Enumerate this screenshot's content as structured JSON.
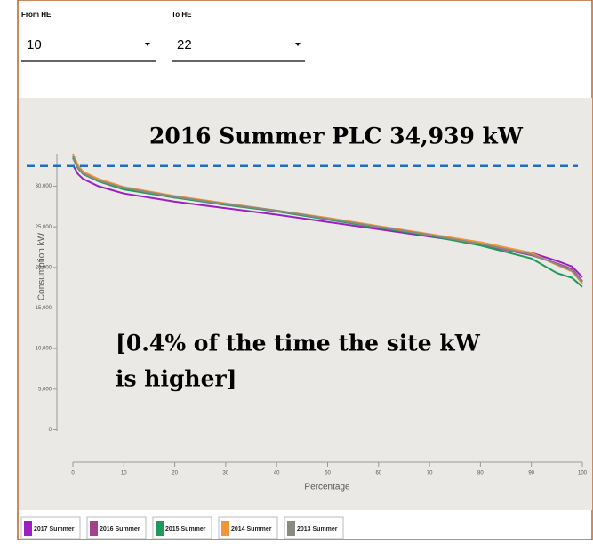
{
  "controls": {
    "from_label": "From HE",
    "from_value": "10",
    "to_label": "To HE",
    "to_value": "22"
  },
  "chart_data": {
    "type": "line",
    "ylabel": "Consumption kW",
    "xlabel": "Percentage",
    "annotations": [
      "2016 Summer PLC 34,939 kW",
      "[0.4% of the time the site kW",
      "is higher]"
    ],
    "reference_line": {
      "value": 32500,
      "color": "#1f6fc4"
    },
    "x": [
      0,
      1,
      2,
      5,
      10,
      20,
      30,
      40,
      50,
      60,
      70,
      80,
      90,
      95,
      98,
      100
    ],
    "series": [
      {
        "name": "2017 Summer",
        "color": "#9b1fc4",
        "values": [
          32600,
          31500,
          30900,
          30000,
          29100,
          28100,
          27300,
          26500,
          25600,
          24700,
          23800,
          22900,
          21800,
          20800,
          20100,
          18800
        ]
      },
      {
        "name": "2016 Summer",
        "color": "#a3418e",
        "values": [
          33800,
          32400,
          31700,
          30700,
          29700,
          28600,
          27800,
          26900,
          26000,
          25000,
          23900,
          22800,
          21500,
          20500,
          19800,
          18300
        ]
      },
      {
        "name": "2015 Summer",
        "color": "#1e9a5a",
        "values": [
          33500,
          32200,
          31500,
          30600,
          29600,
          28600,
          27700,
          26900,
          25900,
          24900,
          23900,
          22700,
          21100,
          19300,
          18700,
          17600
        ]
      },
      {
        "name": "2014 Summer",
        "color": "#f0953a",
        "values": [
          34000,
          32600,
          31800,
          30900,
          29900,
          28800,
          27900,
          27000,
          26100,
          25100,
          24100,
          23100,
          21800,
          20300,
          19500,
          18000
        ]
      },
      {
        "name": "2013 Summer",
        "color": "#8a8a84",
        "values": [
          33700,
          32300,
          31600,
          30700,
          29800,
          28700,
          27800,
          27000,
          26000,
          25000,
          24000,
          22900,
          21600,
          20400,
          19600,
          18200
        ]
      }
    ],
    "xlim": [
      0,
      100
    ],
    "xticks": [
      0,
      10,
      20,
      30,
      40,
      50,
      60,
      70,
      80,
      90,
      100
    ],
    "ylim": [
      -4000,
      34000
    ],
    "yticks": [
      0,
      {
        "value": 5000,
        "label": "5,000"
      },
      {
        "value": 10000,
        "label": "10,000"
      },
      {
        "value": 15000,
        "label": "15,000"
      },
      {
        "value": 20000,
        "label": "20,000"
      },
      {
        "value": 25000,
        "label": "25,000"
      },
      {
        "value": 30000,
        "label": "30,000"
      }
    ]
  }
}
